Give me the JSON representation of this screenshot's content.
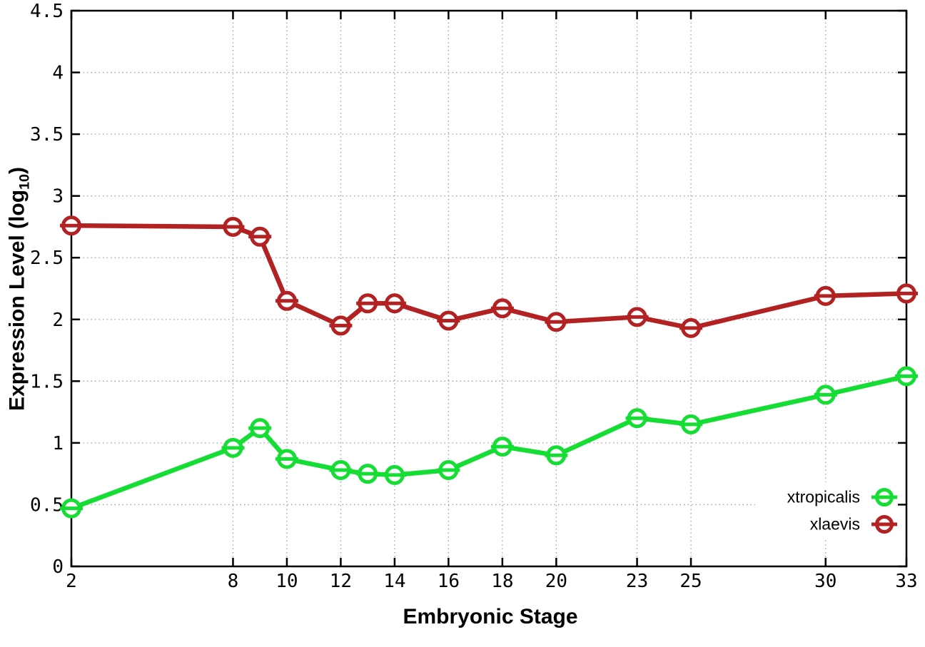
{
  "labels": {
    "ylabel_prefix": "Expression Level (log",
    "ylabel_sub": "10",
    "ylabel_suffix": ")"
  },
  "colors": {
    "background": "#ffffff",
    "border": "#000000",
    "grid": "#9e9e9e",
    "tick_text": "#000000"
  },
  "chart_data": {
    "type": "line",
    "title": "",
    "xlabel": "Embryonic Stage",
    "ylabel": "Expression Level (log10)",
    "x": [
      2,
      8,
      9,
      10,
      12,
      13,
      14,
      16,
      18,
      20,
      23,
      25,
      30,
      33
    ],
    "series": [
      {
        "name": "xtropicalis",
        "color": "#15dd33",
        "values": [
          0.47,
          0.96,
          1.12,
          0.87,
          0.78,
          0.75,
          0.74,
          0.78,
          0.97,
          0.9,
          1.2,
          1.15,
          1.39,
          1.54
        ]
      },
      {
        "name": "xlaevis",
        "color": "#b22222",
        "values": [
          2.76,
          2.75,
          2.67,
          2.15,
          1.95,
          2.13,
          2.13,
          1.99,
          2.09,
          1.98,
          2.02,
          1.93,
          2.19,
          2.21
        ]
      }
    ],
    "xticks": [
      2,
      8,
      10,
      12,
      14,
      16,
      18,
      20,
      23,
      25,
      30,
      33
    ],
    "ytick_labels": [
      "0",
      "0.5",
      "1",
      "1.5",
      "2",
      "2.5",
      "3",
      "3.5",
      "4",
      "4.5"
    ],
    "yticks": [
      0,
      0.5,
      1,
      1.5,
      2,
      2.5,
      3,
      3.5,
      4,
      4.5
    ],
    "xlim": [
      2,
      33
    ],
    "ylim": [
      0,
      4.5
    ],
    "grid": true,
    "legend_position": "bottom-right",
    "marker": "open-circle-with-dash"
  }
}
